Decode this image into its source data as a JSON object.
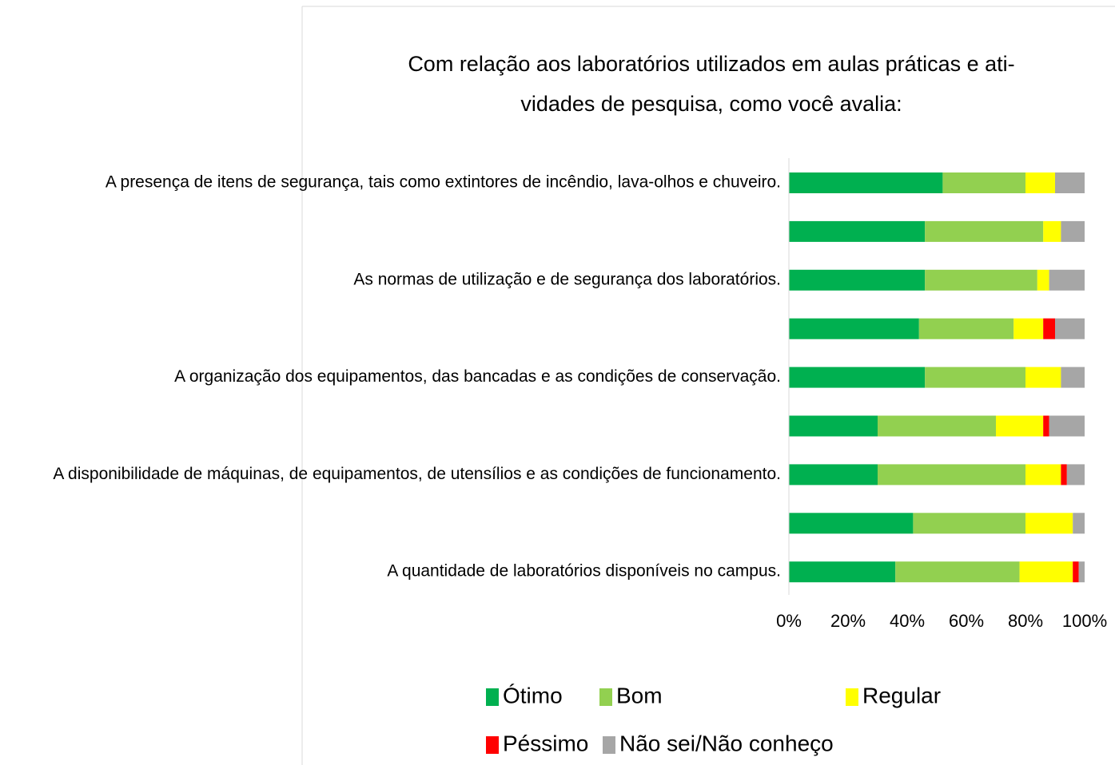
{
  "chart_data": {
    "type": "bar",
    "orientation": "horizontal",
    "stacked": true,
    "title": [
      "Com relação aos laboratórios utilizados em aulas práticas e ati-",
      "vidades de pesquisa, como você avalia:"
    ],
    "categories": [
      "A presença de itens de segurança, tais como extintores de incêndio, lava-olhos e chuveiro.",
      null,
      "As normas de utilização e de segurança dos laboratórios.",
      null,
      "A organização dos equipamentos, das bancadas e as condições de conservação.",
      null,
      "A disponibilidade de máquinas, de equipamentos, de utensílios e as condições de funcionamento.",
      null,
      "A quantidade de laboratórios disponíveis no campus."
    ],
    "series": [
      {
        "name": "Ótimo",
        "color": "#00b050",
        "values": [
          52,
          46,
          46,
          44,
          46,
          30,
          30,
          42,
          36
        ]
      },
      {
        "name": "Bom",
        "color": "#92d050",
        "values": [
          28,
          40,
          38,
          32,
          34,
          40,
          50,
          38,
          42
        ]
      },
      {
        "name": "Regular",
        "color": "#ffff00",
        "values": [
          10,
          6,
          4,
          10,
          12,
          16,
          12,
          16,
          18
        ]
      },
      {
        "name": "Péssimo",
        "color": "#ff0000",
        "values": [
          0,
          0,
          0,
          4,
          0,
          2,
          2,
          0,
          2
        ]
      },
      {
        "name": "Não sei/Não conheço",
        "color": "#a6a6a6",
        "values": [
          10,
          8,
          12,
          10,
          8,
          12,
          6,
          4,
          2
        ]
      }
    ],
    "xlim": [
      0,
      100
    ],
    "xticks": [
      {
        "value": 0,
        "label": "0%"
      },
      {
        "value": 20,
        "label": "20%"
      },
      {
        "value": 40,
        "label": "40%"
      },
      {
        "value": 60,
        "label": "60%"
      },
      {
        "value": 80,
        "label": "80%"
      },
      {
        "value": 100,
        "label": "100%"
      }
    ],
    "legend": "bottom"
  }
}
